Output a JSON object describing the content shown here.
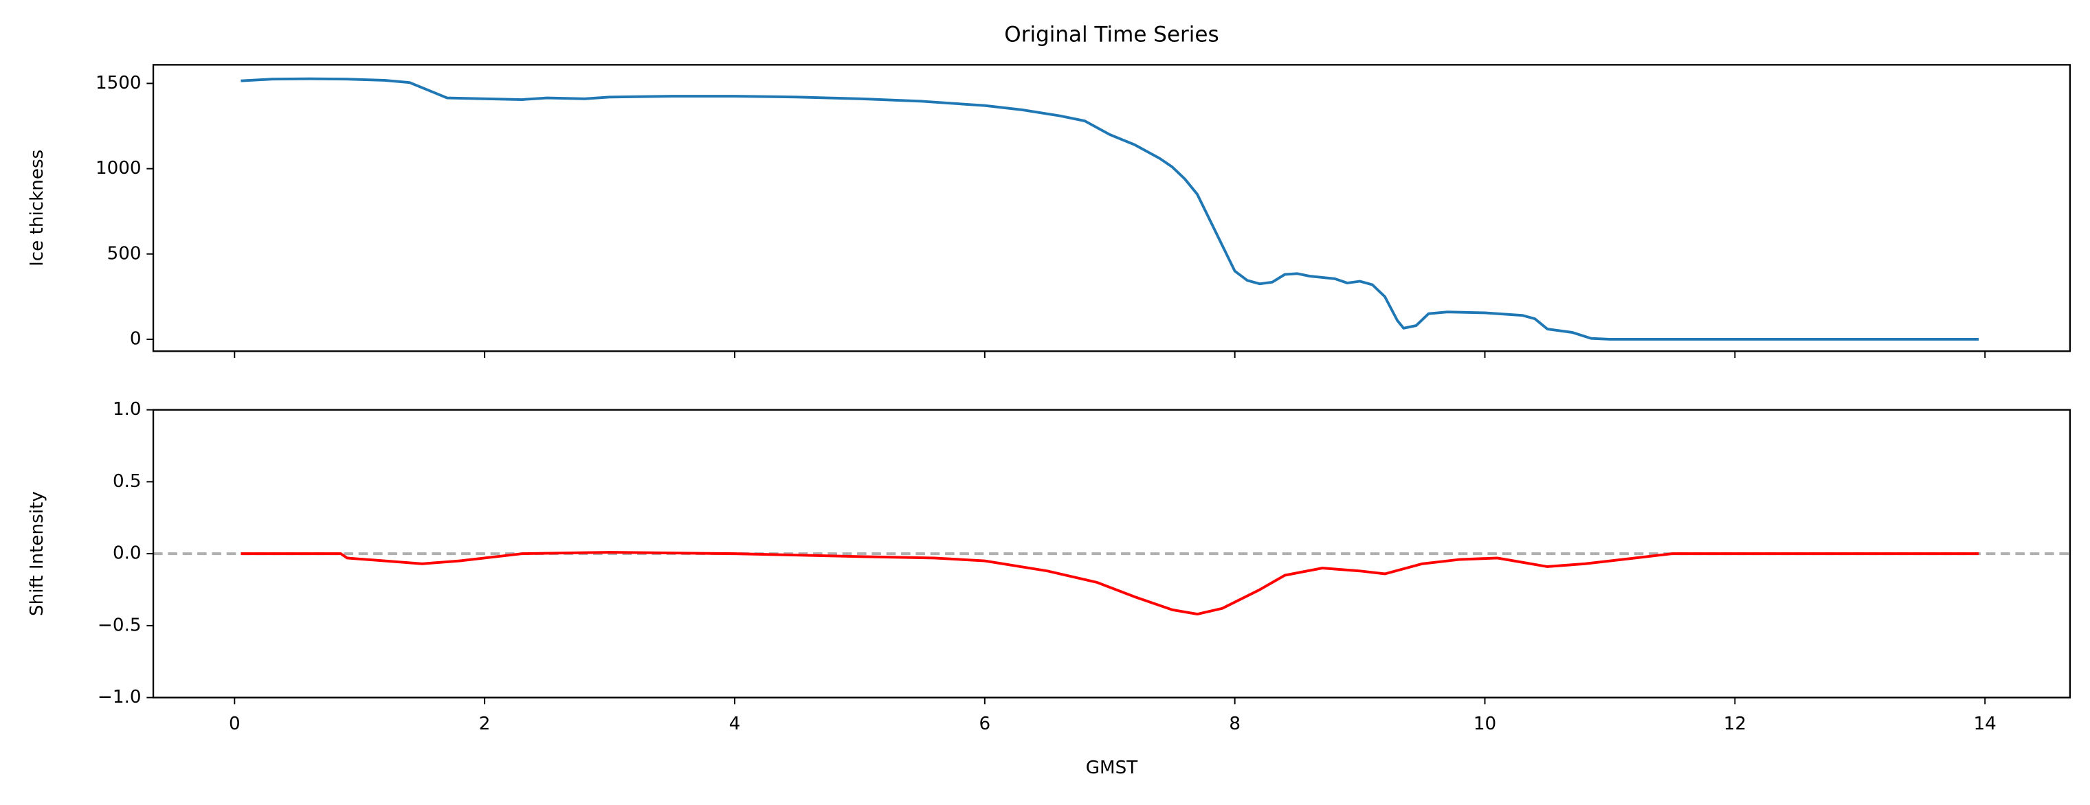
{
  "chart_data": [
    {
      "type": "line",
      "title": "Original Time Series",
      "ylabel": "Ice thickness",
      "xlim": [
        -0.65,
        14.68
      ],
      "ylim": [
        -70,
        1609
      ],
      "yticks": [
        0,
        500,
        1000,
        1500
      ],
      "series": [
        {
          "color": "#1f77b4",
          "x": [
            0.05,
            0.3,
            0.6,
            0.9,
            1.2,
            1.4,
            1.55,
            1.7,
            2.0,
            2.3,
            2.5,
            2.8,
            3.0,
            3.5,
            4.0,
            4.5,
            5.0,
            5.5,
            6.0,
            6.3,
            6.6,
            6.8,
            7.0,
            7.2,
            7.4,
            7.5,
            7.6,
            7.7,
            7.8,
            7.9,
            8.0,
            8.1,
            8.2,
            8.3,
            8.4,
            8.5,
            8.6,
            8.8,
            8.9,
            9.0,
            9.1,
            9.2,
            9.3,
            9.35,
            9.45,
            9.55,
            9.7,
            10.0,
            10.3,
            10.4,
            10.5,
            10.7,
            10.85,
            11.0,
            12.0,
            13.95
          ],
          "values": [
            1515,
            1525,
            1527,
            1525,
            1518,
            1505,
            1460,
            1415,
            1410,
            1405,
            1415,
            1410,
            1420,
            1425,
            1425,
            1420,
            1410,
            1395,
            1370,
            1345,
            1310,
            1280,
            1200,
            1140,
            1060,
            1010,
            940,
            850,
            700,
            550,
            400,
            345,
            325,
            335,
            380,
            385,
            370,
            355,
            330,
            340,
            320,
            250,
            110,
            65,
            80,
            150,
            160,
            155,
            140,
            120,
            60,
            40,
            5,
            0,
            0,
            0
          ]
        }
      ]
    },
    {
      "type": "line",
      "ylabel": "Shift Intensity",
      "xlabel": "GMST",
      "xlim": [
        -0.65,
        14.68
      ],
      "xticks": [
        0,
        2,
        4,
        6,
        8,
        10,
        12,
        14
      ],
      "ylim": [
        -1,
        1
      ],
      "yticks": [
        {
          "value": -1,
          "label": "−1.0"
        },
        {
          "value": -0.5,
          "label": "−0.5"
        },
        {
          "value": 0,
          "label": "0.0"
        },
        {
          "value": 0.5,
          "label": "0.5"
        },
        {
          "value": 1,
          "label": "1.0"
        }
      ],
      "reference_line": {
        "value": 0,
        "color": "#b0b0b0"
      },
      "series": [
        {
          "color": "#ff0000",
          "x": [
            0.05,
            0.85,
            0.9,
            1.2,
            1.5,
            1.8,
            2.3,
            3.0,
            4.0,
            5.0,
            5.6,
            6.0,
            6.5,
            6.9,
            7.2,
            7.5,
            7.7,
            7.9,
            8.2,
            8.4,
            8.7,
            9.0,
            9.2,
            9.5,
            9.8,
            10.1,
            10.3,
            10.5,
            10.8,
            11.2,
            11.5,
            12.0,
            13.95
          ],
          "values": [
            0,
            0,
            -0.03,
            -0.05,
            -0.07,
            -0.05,
            0,
            0.01,
            0,
            -0.02,
            -0.03,
            -0.05,
            -0.12,
            -0.2,
            -0.3,
            -0.39,
            -0.42,
            -0.38,
            -0.25,
            -0.15,
            -0.1,
            -0.12,
            -0.14,
            -0.07,
            -0.04,
            -0.03,
            -0.06,
            -0.09,
            -0.07,
            -0.03,
            0,
            0,
            0
          ]
        }
      ]
    }
  ]
}
